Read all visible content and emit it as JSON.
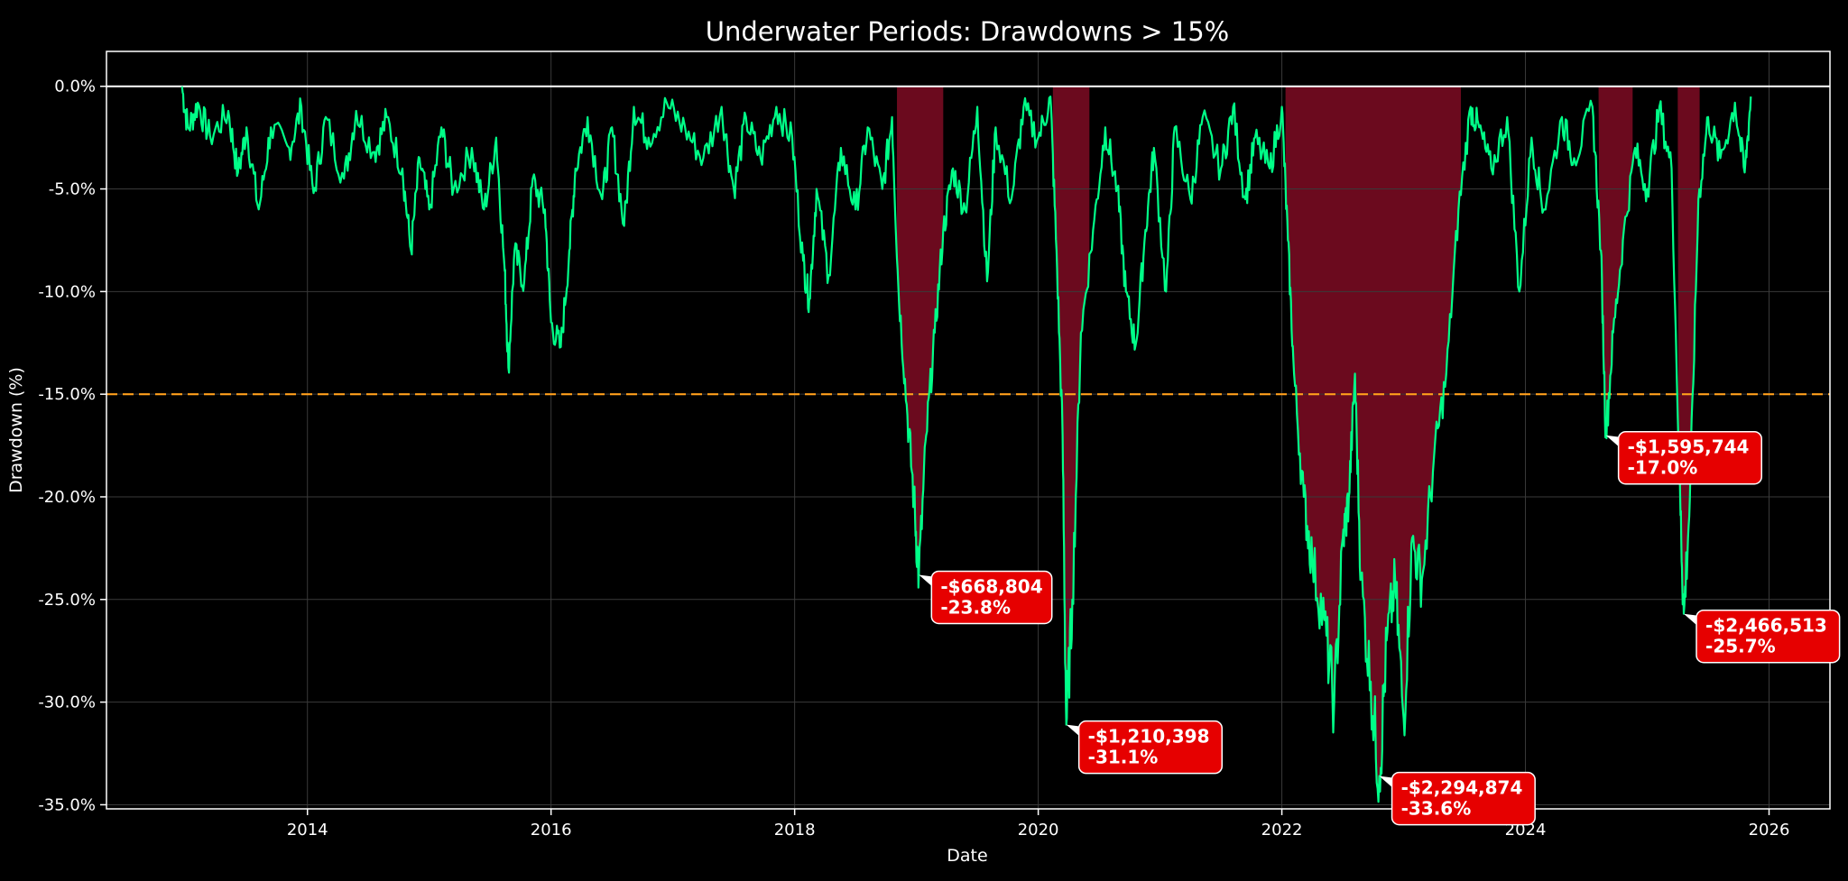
{
  "chart_data": {
    "type": "area",
    "title": "Underwater Periods: Drawdowns > 15%",
    "xlabel": "Date",
    "ylabel": "Drawdown (%)",
    "xlim": [
      2012.35,
      2026.5
    ],
    "ylim": [
      -35.2,
      1.7
    ],
    "x_ticks": [
      2014,
      2016,
      2018,
      2020,
      2022,
      2024,
      2026
    ],
    "y_ticks": [
      0,
      -5,
      -10,
      -15,
      -20,
      -25,
      -30,
      -35
    ],
    "y_tick_labels": [
      "0.0%",
      "-5.0%",
      "-10.0%",
      "-15.0%",
      "-20.0%",
      "-25.0%",
      "-30.0%",
      "-35.0%"
    ],
    "threshold": -15,
    "grid": true,
    "colors": {
      "background": "#000000",
      "line": "#00ff88",
      "fill": "#6b0a1e",
      "threshold": "#ff9f1c",
      "zero_line": "#ffffff",
      "annotation_bg": "#e60000",
      "grid": "#3a3a3a"
    },
    "series": [
      {
        "values": [
          [
            2012.97,
            0
          ],
          [
            2013.02,
            -2
          ],
          [
            2013.1,
            -0.8
          ],
          [
            2013.2,
            -2.4
          ],
          [
            2013.35,
            -1.2
          ],
          [
            2013.43,
            -4.2
          ],
          [
            2013.5,
            -2
          ],
          [
            2013.6,
            -6
          ],
          [
            2013.7,
            -2
          ],
          [
            2013.85,
            -3
          ],
          [
            2013.95,
            -1
          ],
          [
            2014.05,
            -5.2
          ],
          [
            2014.15,
            -1.5
          ],
          [
            2014.3,
            -4.5
          ],
          [
            2014.4,
            -1.2
          ],
          [
            2014.55,
            -3.2
          ],
          [
            2014.65,
            -1.5
          ],
          [
            2014.78,
            -4
          ],
          [
            2014.85,
            -8
          ],
          [
            2014.92,
            -3.5
          ],
          [
            2015.0,
            -6
          ],
          [
            2015.1,
            -2
          ],
          [
            2015.2,
            -5
          ],
          [
            2015.35,
            -3
          ],
          [
            2015.45,
            -6
          ],
          [
            2015.55,
            -2.5
          ],
          [
            2015.62,
            -9
          ],
          [
            2015.65,
            -13.7
          ],
          [
            2015.7,
            -8
          ],
          [
            2015.78,
            -9.5
          ],
          [
            2015.85,
            -4.5
          ],
          [
            2015.95,
            -6
          ],
          [
            2016.0,
            -11.5
          ],
          [
            2016.08,
            -12.7
          ],
          [
            2016.15,
            -8
          ],
          [
            2016.2,
            -4
          ],
          [
            2016.3,
            -1.5
          ],
          [
            2016.42,
            -5.5
          ],
          [
            2016.5,
            -2
          ],
          [
            2016.6,
            -6.8
          ],
          [
            2016.68,
            -1
          ],
          [
            2016.8,
            -2.5
          ],
          [
            2016.95,
            -0.8
          ],
          [
            2017.1,
            -2
          ],
          [
            2017.25,
            -3.5
          ],
          [
            2017.4,
            -1
          ],
          [
            2017.5,
            -5
          ],
          [
            2017.6,
            -1.5
          ],
          [
            2017.72,
            -3.5
          ],
          [
            2017.85,
            -1
          ],
          [
            2017.98,
            -2.5
          ],
          [
            2018.07,
            -8.5
          ],
          [
            2018.12,
            -10.4
          ],
          [
            2018.18,
            -5
          ],
          [
            2018.28,
            -9.2
          ],
          [
            2018.38,
            -3
          ],
          [
            2018.5,
            -6
          ],
          [
            2018.6,
            -2
          ],
          [
            2018.72,
            -5
          ],
          [
            2018.8,
            -1.5
          ],
          [
            2018.85,
            -9.6
          ],
          [
            2018.92,
            -15.5
          ],
          [
            2018.98,
            -20
          ],
          [
            2019.02,
            -23.8
          ],
          [
            2019.08,
            -17
          ],
          [
            2019.15,
            -12
          ],
          [
            2019.22,
            -7
          ],
          [
            2019.3,
            -4
          ],
          [
            2019.4,
            -6
          ],
          [
            2019.5,
            -1
          ],
          [
            2019.58,
            -9.5
          ],
          [
            2019.65,
            -2
          ],
          [
            2019.78,
            -5.5
          ],
          [
            2019.88,
            -1
          ],
          [
            2020.0,
            -2.5
          ],
          [
            2020.1,
            -0.5
          ],
          [
            2020.15,
            -8
          ],
          [
            2020.2,
            -17
          ],
          [
            2020.23,
            -31.1
          ],
          [
            2020.28,
            -25
          ],
          [
            2020.35,
            -12
          ],
          [
            2020.45,
            -7
          ],
          [
            2020.55,
            -2
          ],
          [
            2020.65,
            -5
          ],
          [
            2020.72,
            -10
          ],
          [
            2020.8,
            -12.6
          ],
          [
            2020.88,
            -7
          ],
          [
            2020.95,
            -3
          ],
          [
            2021.05,
            -10
          ],
          [
            2021.12,
            -2
          ],
          [
            2021.25,
            -5.5
          ],
          [
            2021.35,
            -1.5
          ],
          [
            2021.5,
            -4
          ],
          [
            2021.6,
            -1
          ],
          [
            2021.7,
            -5.5
          ],
          [
            2021.78,
            -2.5
          ],
          [
            2021.9,
            -4
          ],
          [
            2022.0,
            -1
          ],
          [
            2022.05,
            -7.5
          ],
          [
            2022.1,
            -14
          ],
          [
            2022.18,
            -20
          ],
          [
            2022.25,
            -23
          ],
          [
            2022.35,
            -26
          ],
          [
            2022.43,
            -30
          ],
          [
            2022.5,
            -22
          ],
          [
            2022.55,
            -20
          ],
          [
            2022.6,
            -14
          ],
          [
            2022.65,
            -24
          ],
          [
            2022.73,
            -29
          ],
          [
            2022.8,
            -33.6
          ],
          [
            2022.86,
            -27
          ],
          [
            2022.93,
            -24
          ],
          [
            2023.0,
            -30.8
          ],
          [
            2023.07,
            -22
          ],
          [
            2023.15,
            -24
          ],
          [
            2023.25,
            -18
          ],
          [
            2023.35,
            -14
          ],
          [
            2023.45,
            -6
          ],
          [
            2023.55,
            -1
          ],
          [
            2023.62,
            -2
          ],
          [
            2023.72,
            -4
          ],
          [
            2023.85,
            -1.5
          ],
          [
            2023.95,
            -10
          ],
          [
            2024.05,
            -2.5
          ],
          [
            2024.15,
            -6
          ],
          [
            2024.3,
            -1.5
          ],
          [
            2024.4,
            -3.5
          ],
          [
            2024.55,
            -1
          ],
          [
            2024.62,
            -8
          ],
          [
            2024.66,
            -17
          ],
          [
            2024.72,
            -12
          ],
          [
            2024.8,
            -7.5
          ],
          [
            2024.9,
            -3
          ],
          [
            2025.0,
            -5
          ],
          [
            2025.1,
            -1
          ],
          [
            2025.2,
            -4
          ],
          [
            2025.27,
            -20
          ],
          [
            2025.3,
            -25.7
          ],
          [
            2025.35,
            -20
          ],
          [
            2025.42,
            -5.5
          ],
          [
            2025.5,
            -1.5
          ],
          [
            2025.6,
            -3.5
          ],
          [
            2025.72,
            -0.8
          ],
          [
            2025.8,
            -4.2
          ],
          [
            2025.85,
            -0.5
          ]
        ]
      }
    ],
    "underwater_periods": [
      [
        2018.84,
        2019.22
      ],
      [
        2020.12,
        2020.42
      ],
      [
        2022.03,
        2023.47
      ],
      [
        2024.6,
        2024.88
      ],
      [
        2025.25,
        2025.43
      ]
    ],
    "annotations": [
      {
        "x": 2019.02,
        "y": -23.8,
        "label": "-$668,804",
        "pct": "-23.8%"
      },
      {
        "x": 2020.23,
        "y": -31.1,
        "label": "-$1,210,398",
        "pct": "-31.1%"
      },
      {
        "x": 2022.8,
        "y": -33.6,
        "label": "-$2,294,874",
        "pct": "-33.6%"
      },
      {
        "x": 2024.66,
        "y": -17.0,
        "label": "-$1,595,744",
        "pct": "-17.0%"
      },
      {
        "x": 2025.3,
        "y": -25.7,
        "label": "-$2,466,513",
        "pct": "-25.7%"
      }
    ]
  }
}
